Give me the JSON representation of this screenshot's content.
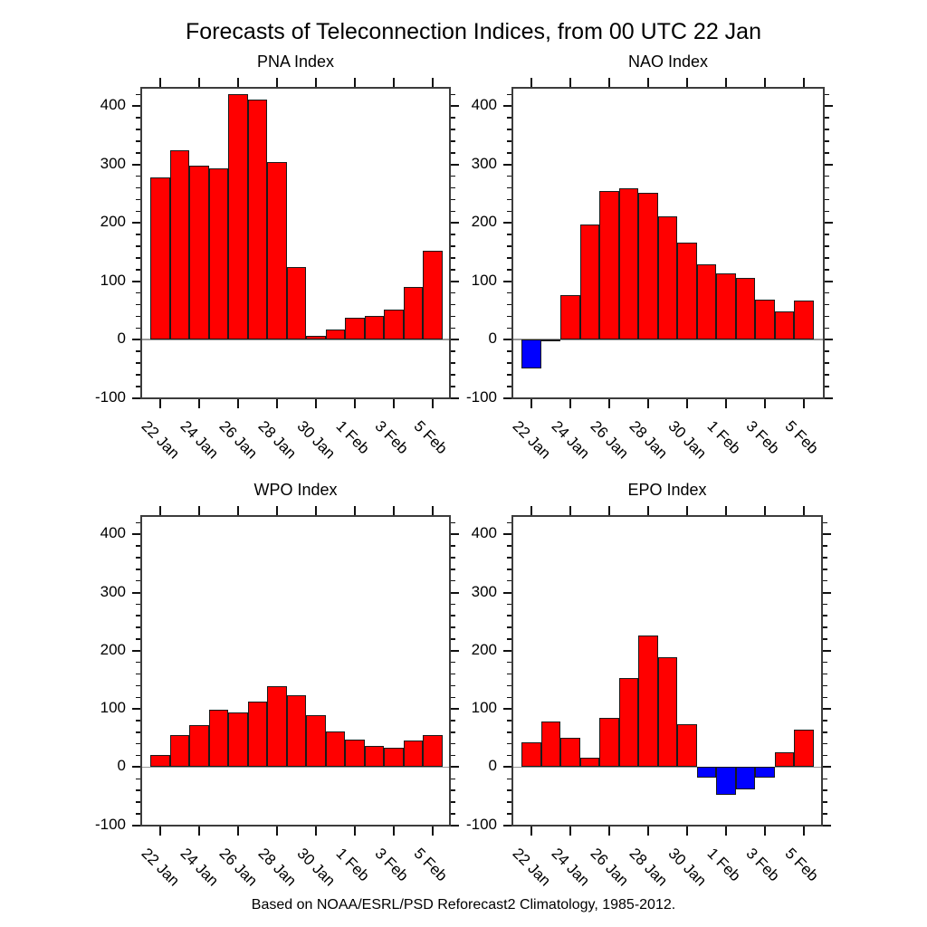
{
  "figure": {
    "title": "Forecasts of Teleconnection Indices, from 00 UTC 22 Jan",
    "footer": "Based on NOAA/ESRL/PSD Reforecast2 Climatology, 1985-2012."
  },
  "colors": {
    "positive_bar": "#ff0000",
    "negative_bar": "#0000ff",
    "bar_outline": "#1a1a1a",
    "frame": "#3c3c3c",
    "tick": "#111111",
    "zero_line": "#999999",
    "text": "#000000",
    "background": "#ffffff"
  },
  "chart_data": [
    {
      "type": "bar",
      "title": "PNA Index",
      "categories": [
        "22 Jan",
        "23 Jan",
        "24 Jan",
        "25 Jan",
        "26 Jan",
        "27 Jan",
        "28 Jan",
        "29 Jan",
        "30 Jan",
        "31 Jan",
        "1 Feb",
        "2 Feb",
        "3 Feb",
        "4 Feb",
        "5 Feb"
      ],
      "values": [
        278,
        325,
        298,
        293,
        420,
        411,
        305,
        124,
        6,
        18,
        37,
        41,
        51,
        91,
        153
      ],
      "x_tick_labels": [
        "22 Jan",
        "24 Jan",
        "26 Jan",
        "28 Jan",
        "30 Jan",
        "1 Feb",
        "3 Feb",
        "5 Feb"
      ],
      "xlabel": "",
      "ylabel": "",
      "ylim": [
        -102,
        433
      ],
      "yticks": [
        -100,
        0,
        100,
        200,
        300,
        400
      ],
      "y_minor_step": 20,
      "grid": false,
      "legend": null
    },
    {
      "type": "bar",
      "title": "NAO Index",
      "categories": [
        "22 Jan",
        "23 Jan",
        "24 Jan",
        "25 Jan",
        "26 Jan",
        "27 Jan",
        "28 Jan",
        "29 Jan",
        "30 Jan",
        "31 Jan",
        "1 Feb",
        "2 Feb",
        "3 Feb",
        "4 Feb",
        "5 Feb"
      ],
      "values": [
        -50,
        -3,
        77,
        197,
        254,
        259,
        252,
        211,
        166,
        129,
        113,
        106,
        69,
        48,
        67
      ],
      "x_tick_labels": [
        "22 Jan",
        "24 Jan",
        "26 Jan",
        "28 Jan",
        "30 Jan",
        "1 Feb",
        "3 Feb",
        "5 Feb"
      ],
      "xlabel": "",
      "ylabel": "",
      "ylim": [
        -102,
        433
      ],
      "yticks": [
        -100,
        0,
        100,
        200,
        300,
        400
      ],
      "y_minor_step": 20,
      "grid": false,
      "legend": null
    },
    {
      "type": "bar",
      "title": "WPO Index",
      "categories": [
        "22 Jan",
        "23 Jan",
        "24 Jan",
        "25 Jan",
        "26 Jan",
        "27 Jan",
        "28 Jan",
        "29 Jan",
        "30 Jan",
        "31 Jan",
        "1 Feb",
        "2 Feb",
        "3 Feb",
        "4 Feb",
        "5 Feb"
      ],
      "values": [
        21,
        55,
        72,
        98,
        94,
        113,
        139,
        123,
        90,
        62,
        47,
        36,
        33,
        46,
        55
      ],
      "x_tick_labels": [
        "22 Jan",
        "24 Jan",
        "26 Jan",
        "28 Jan",
        "30 Jan",
        "1 Feb",
        "3 Feb",
        "5 Feb"
      ],
      "xlabel": "",
      "ylabel": "",
      "ylim": [
        -102,
        433
      ],
      "yticks": [
        -100,
        0,
        100,
        200,
        300,
        400
      ],
      "y_minor_step": 20,
      "grid": false,
      "legend": null
    },
    {
      "type": "bar",
      "title": "EPO Index",
      "categories": [
        "22 Jan",
        "23 Jan",
        "24 Jan",
        "25 Jan",
        "26 Jan",
        "27 Jan",
        "28 Jan",
        "29 Jan",
        "30 Jan",
        "31 Jan",
        "1 Feb",
        "2 Feb",
        "3 Feb",
        "4 Feb",
        "5 Feb"
      ],
      "values": [
        42,
        78,
        51,
        16,
        85,
        153,
        226,
        189,
        73,
        -18,
        -47,
        -38,
        -18,
        26,
        64
      ],
      "x_tick_labels": [
        "22 Jan",
        "24 Jan",
        "26 Jan",
        "28 Jan",
        "30 Jan",
        "1 Feb",
        "3 Feb",
        "5 Feb"
      ],
      "xlabel": "",
      "ylabel": "",
      "ylim": [
        -102,
        433
      ],
      "yticks": [
        -100,
        0,
        100,
        200,
        300,
        400
      ],
      "y_minor_step": 20,
      "grid": false,
      "legend": null
    }
  ]
}
